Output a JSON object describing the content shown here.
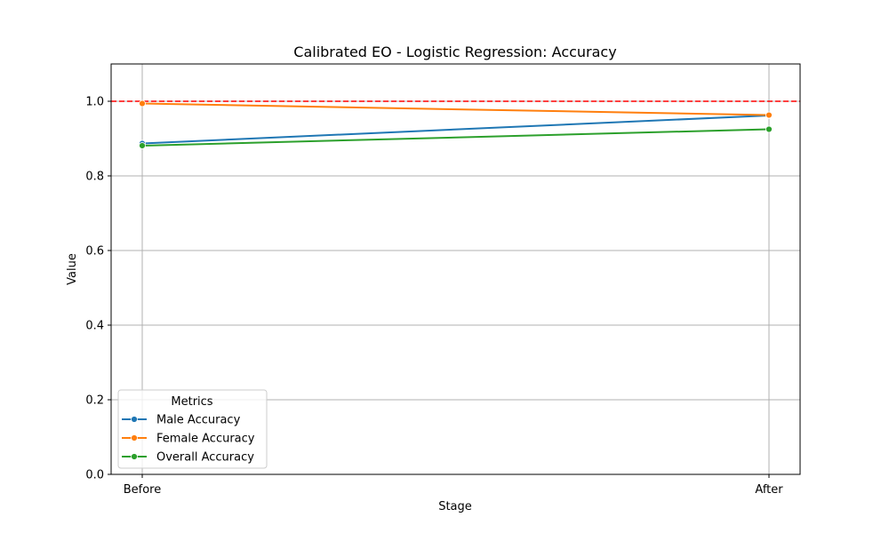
{
  "chart_data": {
    "type": "line",
    "title": "Calibrated EO - Logistic Regression: Accuracy",
    "xlabel": "Stage",
    "ylabel": "Value",
    "categories": [
      "Before",
      "After"
    ],
    "ylim": [
      0,
      1.1
    ],
    "yticks": [
      "0.0",
      "0.2",
      "0.4",
      "0.6",
      "0.8",
      "1.0"
    ],
    "grid": true,
    "reference_line": {
      "y": 1.0,
      "color": "#ff0000",
      "style": "dashed"
    },
    "legend": {
      "title": "Metrics",
      "placement": "lower-left"
    },
    "series": [
      {
        "name": "Male Accuracy",
        "values": [
          0.887,
          0.962
        ],
        "color": "#1f77b4"
      },
      {
        "name": "Female Accuracy",
        "values": [
          0.994,
          0.963
        ],
        "color": "#ff7f0e"
      },
      {
        "name": "Overall Accuracy",
        "values": [
          0.881,
          0.925
        ],
        "color": "#2ca02c"
      }
    ]
  }
}
